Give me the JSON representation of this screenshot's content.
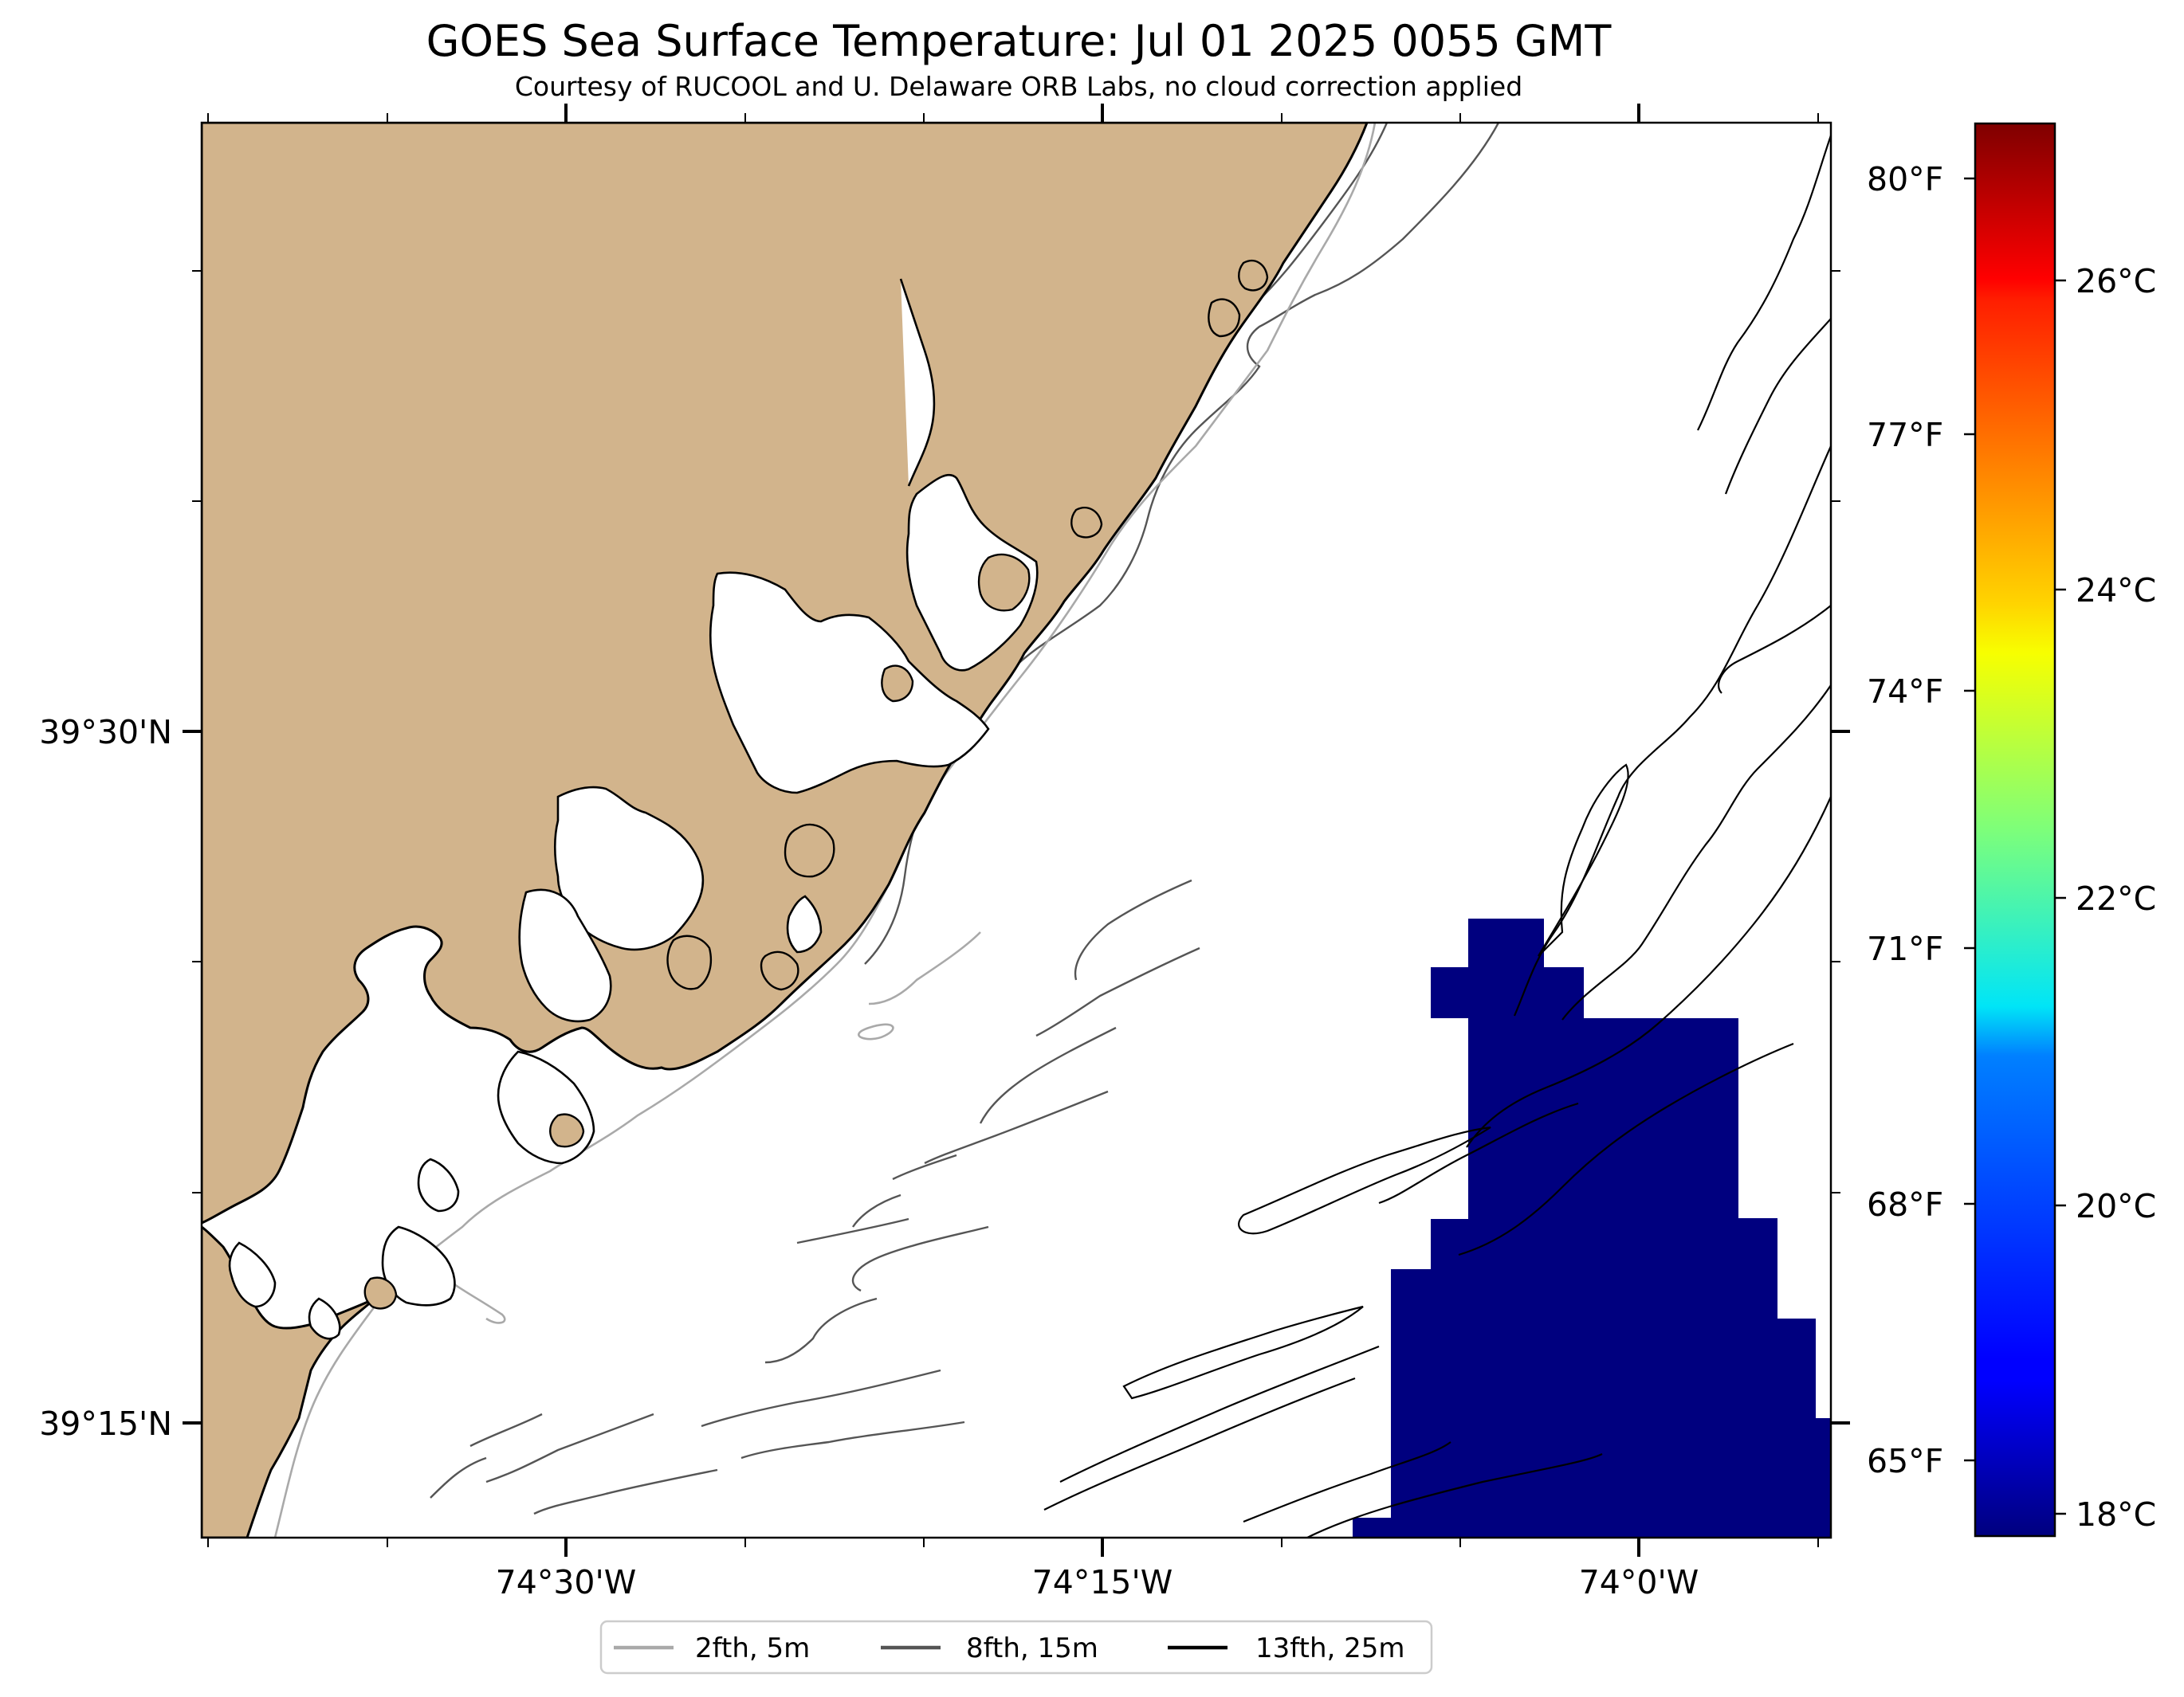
{
  "title": "GOES Sea Surface Temperature: Jul 01 2025 0055 GMT",
  "subtitle": "Courtesy of RUCOOL and U. Delaware ORB Labs, no cloud correction applied",
  "colors": {
    "land": "#d2b48c",
    "sst_cell": "#00007f",
    "contour_2fth": "#a9a9a9",
    "contour_8fth": "#555555",
    "contour_13fth": "#000000"
  },
  "axes": {
    "x_ticks": [
      "74°30'W",
      "74°15'W",
      "74°0'W"
    ],
    "y_ticks": [
      "39°30'N",
      "39°15'N"
    ]
  },
  "colorbar": {
    "colormap": "jet",
    "celsius_labels": [
      "26°C",
      "24°C",
      "22°C",
      "20°C",
      "18°C"
    ],
    "fahrenheit_labels": [
      "80°F",
      "77°F",
      "74°F",
      "71°F",
      "68°F",
      "65°F"
    ]
  },
  "legend": {
    "items": [
      {
        "label": "2fth, 5m",
        "color": "#a9a9a9"
      },
      {
        "label": "8fth, 15m",
        "color": "#555555"
      },
      {
        "label": "13fth, 25m",
        "color": "#000000"
      }
    ]
  }
}
